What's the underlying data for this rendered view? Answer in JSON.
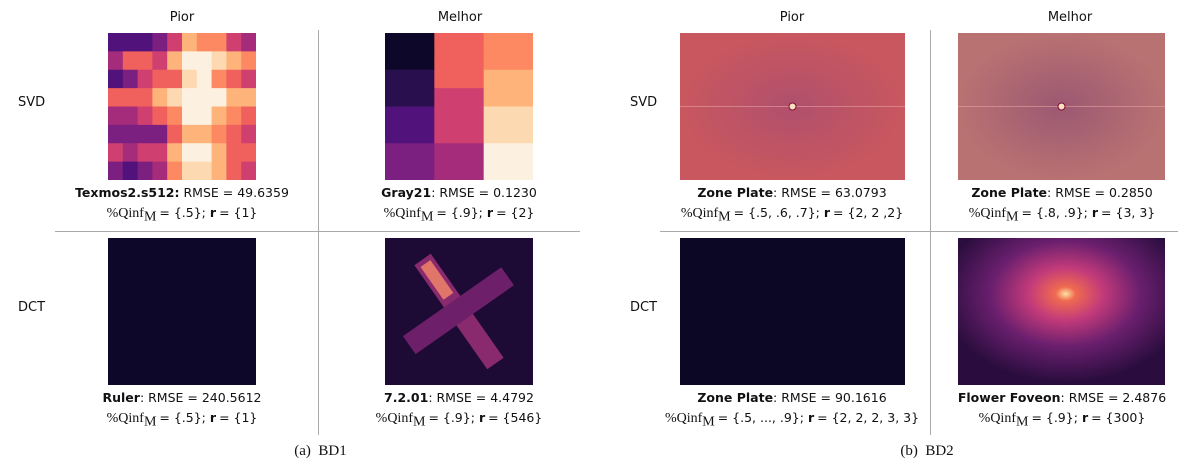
{
  "panels": [
    {
      "caption": "(a)  BD1",
      "columns": [
        "Pior",
        "Melhor"
      ],
      "rows": [
        "SVD",
        "DCT"
      ],
      "cells": [
        [
          {
            "name": "Texmos2.s512:",
            "rmse": "RMSE = 49.6359",
            "qinf": "%Qinf",
            "sub": "M",
            "q": "= {.5};",
            "r": "r",
            "rv": "= {1}"
          },
          {
            "name": "Gray21",
            "rmse": ": RMSE = 0.1230",
            "qinf": "%Qinf",
            "sub": "M",
            "q": "= {.9};",
            "r": "r",
            "rv": "= {2}"
          }
        ],
        [
          {
            "name": "Ruler",
            "rmse": ": RMSE = 240.5612",
            "qinf": "%Qinf",
            "sub": "M",
            "q": "= {.5};",
            "r": "r",
            "rv": "= {1}"
          },
          {
            "name": "7.2.01",
            "rmse": ": RMSE = 4.4792",
            "qinf": "%Qinf",
            "sub": "M",
            "q": "= {.9};",
            "r": "r",
            "rv": "= {546}"
          }
        ]
      ]
    },
    {
      "caption": "(b)  BD2",
      "columns": [
        "Pior",
        "Melhor"
      ],
      "rows": [
        "SVD",
        "DCT"
      ],
      "cells": [
        [
          {
            "name": "Zone Plate",
            "rmse": ": RMSE = 63.0793",
            "qinf": "%Qinf",
            "sub": "M",
            "q": "= {.5, .6, .7};",
            "r": "r",
            "rv": "= {2, 2 ,2}"
          },
          {
            "name": "Zone Plate",
            "rmse": ": RMSE = 0.2850",
            "qinf": "%Qinf",
            "sub": "M",
            "q": "= {.8, .9};",
            "r": "r",
            "rv": "= {3, 3}"
          }
        ],
        [
          {
            "name": "Zone Plate",
            "rmse": ": RMSE = 90.1616",
            "qinf": "%Qinf",
            "sub": "M",
            "q": "= {.5, ..., .9};",
            "r": "r",
            "rv": "= {2, 2, 2, 3, 3}"
          },
          {
            "name": "Flower Foveon",
            "rmse": ": RMSE = 2.4876",
            "qinf": "%Qinf",
            "sub": "M",
            "q": "= {.9};",
            "r": "r",
            "rv": "= {300}"
          }
        ]
      ]
    }
  ]
}
